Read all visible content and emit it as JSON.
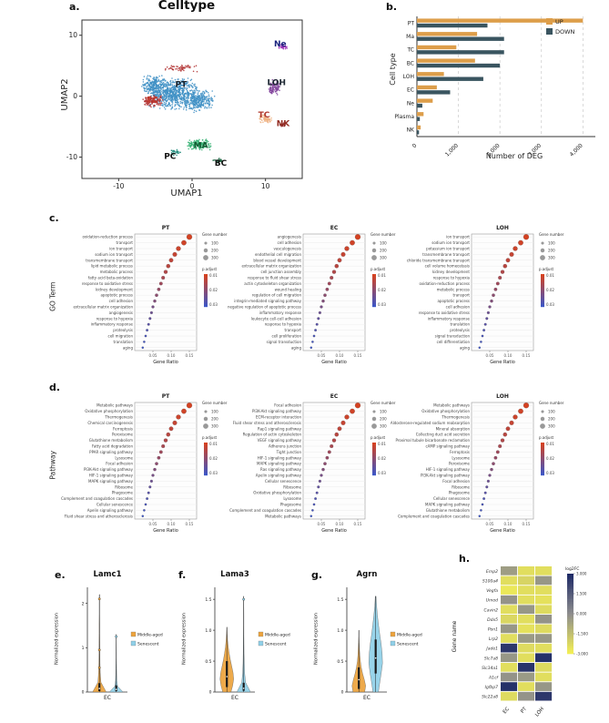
{
  "labels": {
    "a": "a.",
    "b": "b.",
    "c": "c.",
    "d": "d.",
    "e": "e.",
    "f": "f.",
    "g": "g.",
    "h": "h."
  },
  "sections": {
    "c_ylabel": "GO Term",
    "d_ylabel": "Pathway"
  },
  "dot_common": {
    "xlabel": "Gene Ratio",
    "xlim": [
      0,
      0.17
    ],
    "xticks": [
      0.05,
      0.1,
      0.15
    ],
    "ratio": [
      0.15,
      0.135,
      0.12,
      0.11,
      0.1,
      0.092,
      0.085,
      0.078,
      0.072,
      0.066,
      0.06,
      0.055,
      0.05,
      0.046,
      0.042,
      0.038,
      0.034,
      0.03,
      0.026,
      0.022
    ],
    "size": [
      320,
      280,
      250,
      230,
      210,
      190,
      170,
      155,
      140,
      130,
      118,
      106,
      95,
      85,
      76,
      68,
      60,
      52,
      45,
      38
    ],
    "pt": [
      0.02,
      0.05,
      0.08,
      0.12,
      0.16,
      0.2,
      0.25,
      0.3,
      0.36,
      0.42,
      0.48,
      0.55,
      0.62,
      0.69,
      0.76,
      0.82,
      0.88,
      0.92,
      0.96,
      1.0
    ],
    "size_legend": [
      100,
      200,
      300
    ],
    "size_legend_title": "Gene number",
    "color_legend_title": "p.adjust",
    "color_ticks": [
      "0.01",
      "0.02",
      "0.03"
    ],
    "color_low": "#d7421f",
    "color_high": "#3d56c6"
  },
  "chart_data": [
    {
      "id": "a",
      "type": "scatter",
      "title": "Celltype",
      "xlabel": "UMAP1",
      "ylabel": "UMAP2",
      "xticks": [
        -10,
        0,
        10
      ],
      "yticks": [
        -10,
        0,
        10
      ],
      "xlim": [
        -15,
        15
      ],
      "ylim": [
        -13.5,
        12.5
      ],
      "clusters": [
        {
          "name": "PT-core",
          "color": "#3e8fc4",
          "cx": -2.5,
          "cy": 0.5,
          "sx": 3.6,
          "sy": 2.7,
          "n": 650
        },
        {
          "name": "PT-left",
          "color": "#3e8fc4",
          "cx": -5.2,
          "cy": 1.8,
          "sx": 1.9,
          "sy": 1.7,
          "n": 220
        },
        {
          "name": "PT-right",
          "color": "#3e8fc4",
          "cx": 0.8,
          "cy": -0.8,
          "sx": 2.3,
          "sy": 1.9,
          "n": 280
        },
        {
          "name": "EC",
          "color": "#b03030",
          "cx": -5.4,
          "cy": -0.8,
          "sx": 1.5,
          "sy": 1.1,
          "n": 120
        },
        {
          "name": "EC-top",
          "color": "#b03030",
          "cx": -1.5,
          "cy": 4.6,
          "sx": 2.6,
          "sy": 0.6,
          "n": 55
        },
        {
          "name": "LOH",
          "color": "#7d3c98",
          "cx": 11.2,
          "cy": 1.4,
          "sx": 1.1,
          "sy": 1.4,
          "n": 90
        },
        {
          "name": "Ne",
          "color": "#9b30b5",
          "cx": 12.3,
          "cy": 8.2,
          "sx": 0.7,
          "sy": 0.5,
          "n": 30
        },
        {
          "name": "TC",
          "color": "#efb183",
          "cx": 10.0,
          "cy": -3.7,
          "sx": 1.0,
          "sy": 0.8,
          "n": 70
        },
        {
          "name": "NK",
          "color": "#8e2323",
          "cx": 12.3,
          "cy": -4.7,
          "sx": 0.5,
          "sy": 0.4,
          "n": 20
        },
        {
          "name": "MA",
          "color": "#2eaf6e",
          "cx": 1.0,
          "cy": -7.9,
          "sx": 1.7,
          "sy": 1.0,
          "n": 150
        },
        {
          "name": "PC",
          "color": "#1d8a7a",
          "cx": -2.3,
          "cy": -9.2,
          "sx": 0.8,
          "sy": 0.6,
          "n": 30
        },
        {
          "name": "BC",
          "color": "#1e6b45",
          "cx": 3.6,
          "cy": -10.6,
          "sx": 0.8,
          "sy": 0.5,
          "n": 25
        }
      ],
      "cluster_labels": [
        {
          "text": "PT",
          "x": -1.5,
          "y": 1.5,
          "color": "#16212c"
        },
        {
          "text": "EC",
          "x": -5.4,
          "y": -1.0,
          "color": "#c0392b"
        },
        {
          "text": "LOH",
          "x": 11.5,
          "y": 1.8,
          "color": "#1b2631"
        },
        {
          "text": "TC",
          "x": 9.8,
          "y": -3.5,
          "color": "#b03a2e"
        },
        {
          "text": "NK",
          "x": 12.4,
          "y": -4.9,
          "color": "#922b21"
        },
        {
          "text": "Ne",
          "x": 12.0,
          "y": 8.2,
          "color": "#1a237e"
        },
        {
          "text": "MA",
          "x": 1.2,
          "y": -8.5,
          "color": "#145a32"
        },
        {
          "text": "BC",
          "x": 3.9,
          "y": -11.4,
          "color": "#111111"
        },
        {
          "text": "PC",
          "x": -3.0,
          "y": -10.3,
          "color": "#111111"
        }
      ]
    },
    {
      "id": "b",
      "type": "bar",
      "orientation": "horizontal",
      "categories": [
        "PT",
        "Ma",
        "TC",
        "BC",
        "LOH",
        "EC",
        "Ne",
        "Plasma",
        "NK"
      ],
      "series": [
        {
          "name": "UP",
          "color": "#dd9e4a",
          "values": [
            4000,
            1450,
            950,
            1400,
            650,
            480,
            380,
            160,
            90
          ]
        },
        {
          "name": "DOWN",
          "color": "#3a5560",
          "values": [
            1700,
            2100,
            2100,
            2000,
            1600,
            800,
            130,
            70,
            50
          ]
        }
      ],
      "xticks": [
        0,
        1000,
        2000,
        3000,
        4000
      ],
      "xtick_labels": [
        "0",
        "1,000",
        "2,000",
        "3,000",
        "4,000"
      ],
      "xlim": [
        0,
        4300
      ],
      "xlabel": "Number of DEG",
      "ylabel": "Cell type"
    },
    {
      "id": "c-PT",
      "type": "dotplot",
      "title": "PT",
      "terms": [
        "oxidation-reduction process",
        "transport",
        "ion transport",
        "sodium ion transport",
        "transmembrane transport",
        "lipid metabolic process",
        "metabolic process",
        "fatty acid beta-oxidation",
        "response to oxidative stress",
        "kidney development",
        "apoptotic process",
        "cell adhesion",
        "extracellular matrix organization",
        "angiogenesis",
        "response to hypoxia",
        "inflammatory response",
        "proteolysis",
        "cell migration",
        "translation",
        "aging"
      ]
    },
    {
      "id": "c-EC",
      "type": "dotplot",
      "title": "EC",
      "terms": [
        "angiogenesis",
        "cell adhesion",
        "vasculogenesis",
        "endothelial cell migration",
        "blood vessel development",
        "extracellular matrix organization",
        "cell junction assembly",
        "response to fluid shear stress",
        "actin cytoskeleton organization",
        "wound healing",
        "regulation of cell migration",
        "integrin-mediated signaling pathway",
        "negative regulation of apoptotic process",
        "inflammatory response",
        "leukocyte cell-cell adhesion",
        "response to hypoxia",
        "transport",
        "cell proliferation",
        "signal transduction",
        "aging"
      ]
    },
    {
      "id": "c-LOH",
      "type": "dotplot",
      "title": "LOH",
      "terms": [
        "ion transport",
        "sodium ion transport",
        "potassium ion transport",
        "transmembrane transport",
        "chloride transmembrane transport",
        "cell volume homeostasis",
        "kidney development",
        "response to hypoxia",
        "oxidation-reduction process",
        "metabolic process",
        "transport",
        "apoptotic process",
        "cell adhesion",
        "response to oxidative stress",
        "inflammatory response",
        "translation",
        "proteolysis",
        "signal transduction",
        "cell differentiation",
        "aging"
      ]
    },
    {
      "id": "d-PT",
      "type": "dotplot",
      "title": "PT",
      "terms": [
        "Metabolic pathways",
        "Oxidative phosphorylation",
        "Thermogenesis",
        "Chemical carcinogenesis",
        "Ferroptosis",
        "Peroxisome",
        "Glutathione metabolism",
        "Fatty acid degradation",
        "PPAR signaling pathway",
        "Lysosome",
        "Focal adhesion",
        "PI3K-Akt signaling pathway",
        "HIF-1 signaling pathway",
        "MAPK signaling pathway",
        "Ribosome",
        "Phagosome",
        "Complement and coagulation cascades",
        "Cellular senescence",
        "Apelin signaling pathway",
        "Fluid shear stress and atherosclerosis"
      ]
    },
    {
      "id": "d-EC",
      "type": "dotplot",
      "title": "EC",
      "terms": [
        "Focal adhesion",
        "PI3K-Akt signaling pathway",
        "ECM-receptor interaction",
        "Fluid shear stress and atherosclerosis",
        "Rap1 signaling pathway",
        "Regulation of actin cytoskeleton",
        "VEGF signaling pathway",
        "Adherens junction",
        "Tight junction",
        "HIF-1 signaling pathway",
        "MAPK signaling pathway",
        "Ras signaling pathway",
        "Apelin signaling pathway",
        "Cellular senescence",
        "Ribosome",
        "Oxidative phosphorylation",
        "Lysosome",
        "Phagosome",
        "Complement and coagulation cascades",
        "Metabolic pathways"
      ]
    },
    {
      "id": "d-LOH",
      "type": "dotplot",
      "title": "LOH",
      "terms": [
        "Metabolic pathways",
        "Oxidative phosphorylation",
        "Thermogenesis",
        "Aldosterone-regulated sodium reabsorption",
        "Mineral absorption",
        "Collecting duct acid secretion",
        "Proximal tubule bicarbonate reclamation",
        "cAMP signaling pathway",
        "Ferroptosis",
        "Lysosome",
        "Peroxisome",
        "HIF-1 signaling pathway",
        "PI3K-Akt signaling pathway",
        "Focal adhesion",
        "Ribosome",
        "Phagosome",
        "Cellular senescence",
        "MAPK signaling pathway",
        "Glutathione metabolism",
        "Complement and coagulation cascades"
      ]
    },
    {
      "id": "e",
      "type": "violin",
      "title": "Lamc1",
      "ylabel": "Normalized expression",
      "xtick": "EC",
      "ymax": 2.3,
      "yticks": [
        0,
        1,
        2
      ],
      "ytick_labels": [
        "0",
        "1",
        "2"
      ],
      "legend": [
        {
          "label": "Middle-aged",
          "color": "#eda33c"
        },
        {
          "label": "Senescent",
          "color": "#8fd0e8"
        }
      ],
      "groups": [
        {
          "name": "Middle-aged",
          "color": "#eda33c",
          "max": 2.2,
          "profile": [
            1.0,
            0.22,
            0.12,
            0.08,
            0.06,
            0.05,
            0.04,
            0.035,
            0.03,
            0.025,
            0.02
          ],
          "box": [
            0.02,
            0.08,
            0.2
          ],
          "points": [
            2.1,
            0.95,
            0.55
          ]
        },
        {
          "name": "Senescent",
          "color": "#8fd0e8",
          "max": 1.3,
          "profile": [
            1.0,
            0.2,
            0.1,
            0.07,
            0.05,
            0.04,
            0.03,
            0.025,
            0.02,
            0.015,
            0.01
          ],
          "box": [
            0.02,
            0.06,
            0.15
          ],
          "points": [
            1.25
          ]
        }
      ]
    },
    {
      "id": "f",
      "type": "violin",
      "title": "Lama3",
      "ylabel": "Normalized expression",
      "xtick": "EC",
      "ymax": 1.65,
      "yticks": [
        0,
        0.5,
        1.0,
        1.5
      ],
      "ytick_labels": [
        "0",
        "0.5",
        "1.0",
        "1.5"
      ],
      "legend": [
        {
          "label": "Middle-aged",
          "color": "#eda33c"
        },
        {
          "label": "Senescent",
          "color": "#8fd0e8"
        }
      ],
      "groups": [
        {
          "name": "Middle-aged",
          "color": "#eda33c",
          "max": 1.05,
          "profile": [
            0.6,
            0.85,
            1.0,
            0.9,
            0.7,
            0.5,
            0.33,
            0.2,
            0.11,
            0.05,
            0.02
          ],
          "box": [
            0.08,
            0.25,
            0.5
          ]
        },
        {
          "name": "Senescent",
          "color": "#8fd0e8",
          "max": 1.55,
          "profile": [
            1.0,
            0.28,
            0.14,
            0.09,
            0.06,
            0.045,
            0.035,
            0.03,
            0.025,
            0.02,
            0.015
          ],
          "box": [
            0.02,
            0.06,
            0.15
          ],
          "points": [
            1.5
          ]
        }
      ]
    },
    {
      "id": "g",
      "type": "violin",
      "title": "Agrn",
      "ylabel": "Normalized expression",
      "xtick": "EC",
      "ymax": 1.65,
      "yticks": [
        0,
        0.5,
        1.0,
        1.5
      ],
      "ytick_labels": [
        "0",
        "0.5",
        "1.0",
        "1.5"
      ],
      "legend": [
        {
          "label": "Middle-aged",
          "color": "#eda33c"
        },
        {
          "label": "Senescent",
          "color": "#8fd0e8"
        }
      ],
      "groups": [
        {
          "name": "Middle-aged",
          "color": "#eda33c",
          "max": 1.0,
          "profile": [
            0.85,
            1.0,
            0.8,
            0.55,
            0.35,
            0.22,
            0.14,
            0.09,
            0.05,
            0.03,
            0.02
          ],
          "box": [
            0.05,
            0.2,
            0.4
          ]
        },
        {
          "name": "Senescent",
          "color": "#8fd0e8",
          "max": 1.55,
          "profile": [
            0.4,
            0.6,
            0.82,
            1.0,
            0.95,
            0.8,
            0.6,
            0.42,
            0.26,
            0.13,
            0.05
          ],
          "box": [
            0.3,
            0.55,
            0.85
          ]
        }
      ]
    },
    {
      "id": "h",
      "type": "heatmap",
      "ylabel": "Gene name",
      "colorbar_title": "log2FC",
      "genes": [
        "Emp2",
        "S100a4",
        "Vegfa",
        "Umod",
        "Cavin2",
        "Ddx5",
        "Pon1",
        "Lrp2",
        "Jade1",
        "Slc7a8",
        "Slc34a1",
        "A1cf",
        "Igfbp7",
        "Slc22a8"
      ],
      "cols": [
        "EC",
        "PT",
        "LOH"
      ],
      "low_color": "#f2ee55",
      "mid_color": "#8d8d8d",
      "high_color": "#1e2a66",
      "colorbar_ticks": [
        "3.000",
        "1.500",
        "0.000",
        "-1.500",
        "-3.000"
      ],
      "values": [
        [
          -0.5,
          -2.5,
          -2.5
        ],
        [
          -2.5,
          -2.2,
          -0.3
        ],
        [
          -2.8,
          -2.5,
          -2.5
        ],
        [
          -0.2,
          -2.5,
          -2.6
        ],
        [
          -2.5,
          -0.3,
          -2.4
        ],
        [
          -2.3,
          -2.5,
          -0.2
        ],
        [
          -0.3,
          -2.6,
          -2.4
        ],
        [
          -2.5,
          -0.4,
          -0.3
        ],
        [
          2.6,
          -2.4,
          -2.5
        ],
        [
          -0.3,
          -2.5,
          2.8
        ],
        [
          -2.5,
          2.7,
          -2.4
        ],
        [
          -0.2,
          -0.4,
          -2.5
        ],
        [
          2.8,
          -2.5,
          -0.3
        ],
        [
          -2.4,
          -0.2,
          2.6
        ]
      ]
    }
  ]
}
